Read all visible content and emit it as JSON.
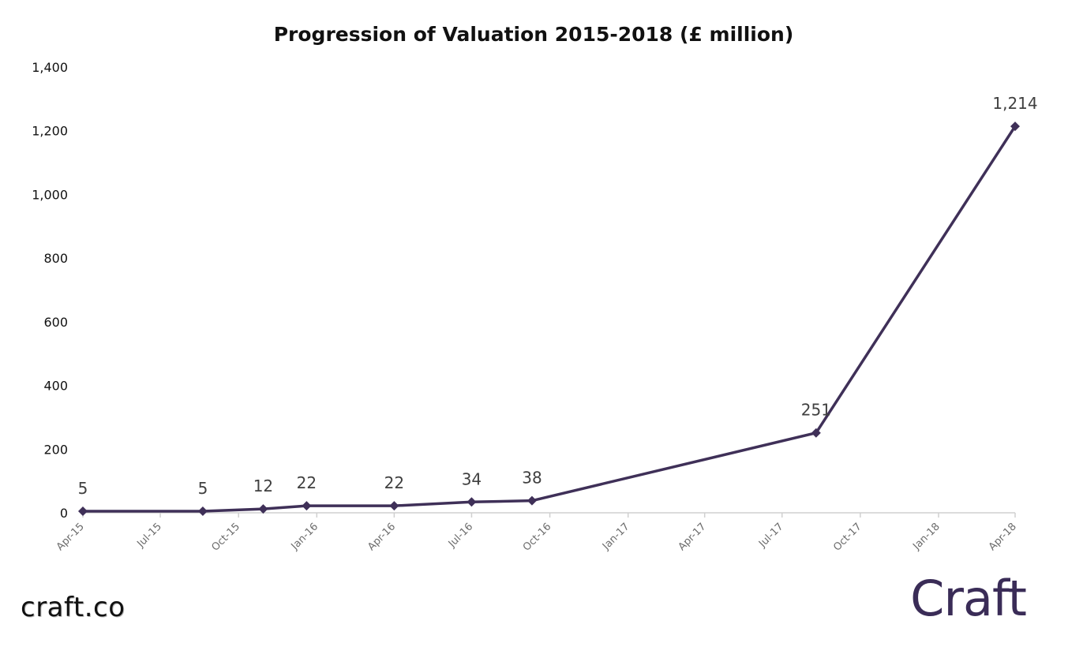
{
  "chart_data": {
    "type": "line",
    "title": "Progression of Valuation 2015-2018 (£ million)",
    "xlabel": "",
    "ylabel": "",
    "ylim": [
      0,
      1400
    ],
    "yticks": [
      "0",
      "200",
      "400",
      "600",
      "800",
      "1,000",
      "1,200",
      "1,400"
    ],
    "ytick_values": [
      0,
      200,
      400,
      600,
      800,
      1000,
      1200,
      1400
    ],
    "xticks": [
      "Apr-15",
      "Jul-15",
      "Oct-15",
      "Jan-16",
      "Apr-16",
      "Jul-16",
      "Oct-16",
      "Jan-17",
      "Apr-17",
      "Jul-17",
      "Oct-17",
      "Jan-18",
      "Apr-18"
    ],
    "xtick_dates": [
      "2015-04-01",
      "2015-07-01",
      "2015-10-01",
      "2016-01-01",
      "2016-04-01",
      "2016-07-01",
      "2016-10-01",
      "2017-01-01",
      "2017-04-01",
      "2017-07-01",
      "2017-10-01",
      "2018-01-01",
      "2018-04-01"
    ],
    "grid": false,
    "series": [
      {
        "x": [
          "2015-04-01",
          "2015-08-20",
          "2015-10-30",
          "2015-12-20",
          "2016-04-01",
          "2016-07-01",
          "2016-09-10",
          "2017-08-10",
          "2018-04-01"
        ],
        "values": [
          5,
          5,
          12,
          22,
          22,
          34,
          38,
          251,
          1214
        ],
        "labels": [
          "5",
          "5",
          "12",
          "22",
          "22",
          "34",
          "38",
          "251",
          "1,214"
        ],
        "color": "#3f3058"
      }
    ]
  },
  "footer": {
    "source": "craft.co",
    "brand": "Craft"
  }
}
